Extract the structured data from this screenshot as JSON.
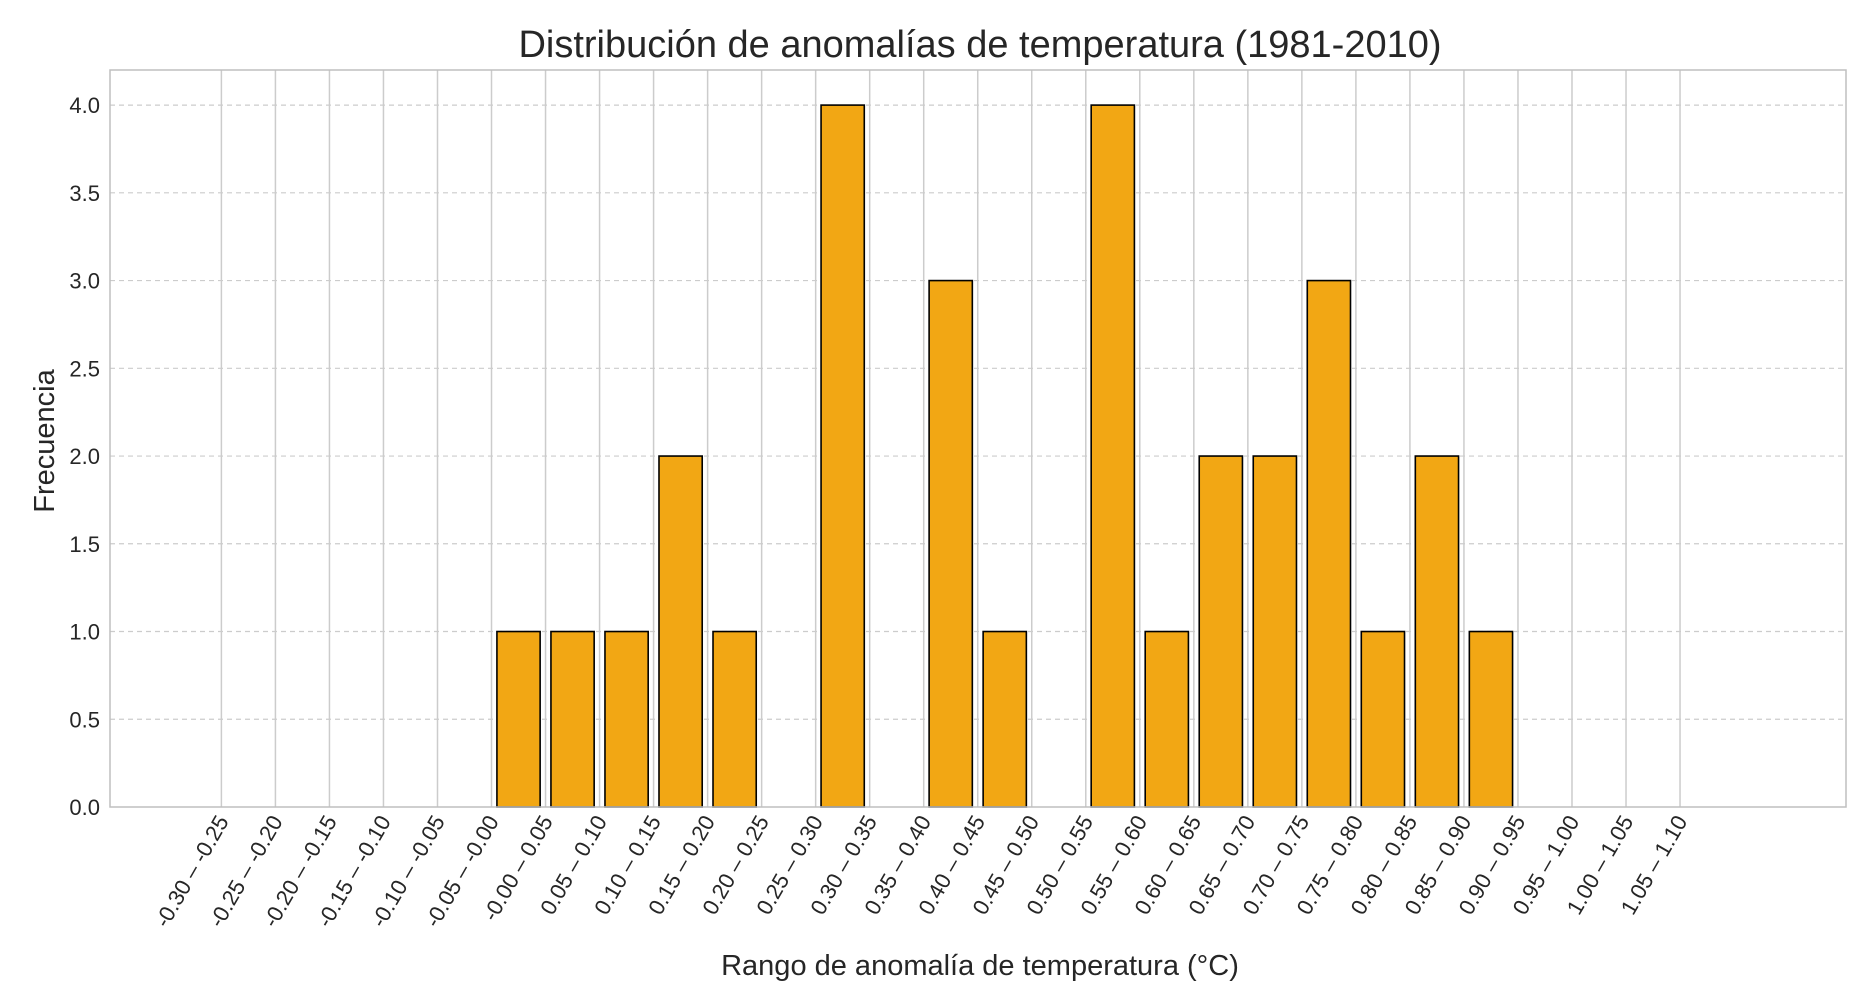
{
  "chart_data": {
    "type": "bar",
    "title": "Distribución de anomalías de temperatura (1981-2010)",
    "xlabel": "Rango de anomalía de temperatura (°C)",
    "ylabel": "Frecuencia",
    "categories": [
      "-0.30 – -0.25",
      "-0.25 – -0.20",
      "-0.20 – -0.15",
      "-0.15 – -0.10",
      "-0.10 – -0.05",
      "-0.05 – -0.00",
      "-0.00 – 0.05",
      "0.05 – 0.10",
      "0.10 – 0.15",
      "0.15 – 0.20",
      "0.20 – 0.25",
      "0.25 – 0.30",
      "0.30 – 0.35",
      "0.35 – 0.40",
      "0.40 – 0.45",
      "0.45 – 0.50",
      "0.50 – 0.55",
      "0.55 – 0.60",
      "0.60 – 0.65",
      "0.65 – 0.70",
      "0.70 – 0.75",
      "0.75 – 0.80",
      "0.80 – 0.85",
      "0.85 – 0.90",
      "0.90 – 0.95",
      "0.95 – 1.00",
      "1.00 – 1.05",
      "1.05 – 1.10"
    ],
    "bars": [
      {
        "bin_start": -0.05,
        "value": 1
      },
      {
        "bin_start": 0.0,
        "value": 1
      },
      {
        "bin_start": 0.05,
        "value": 1
      },
      {
        "bin_start": 0.1,
        "value": 2
      },
      {
        "bin_start": 0.15,
        "value": 1
      },
      {
        "bin_start": 0.25,
        "value": 4
      },
      {
        "bin_start": 0.35,
        "value": 3
      },
      {
        "bin_start": 0.4,
        "value": 1
      },
      {
        "bin_start": 0.5,
        "value": 4
      },
      {
        "bin_start": 0.55,
        "value": 1
      },
      {
        "bin_start": 0.6,
        "value": 2
      },
      {
        "bin_start": 0.65,
        "value": 2
      },
      {
        "bin_start": 0.7,
        "value": 3
      },
      {
        "bin_start": 0.75,
        "value": 1
      },
      {
        "bin_start": 0.8,
        "value": 2
      },
      {
        "bin_start": 0.85,
        "value": 1
      }
    ],
    "xlim": [
      -0.3,
      1.1
    ],
    "ylim": [
      0,
      4.2
    ],
    "yticks": [
      "0.0",
      "0.5",
      "1.0",
      "1.5",
      "2.0",
      "2.5",
      "3.0",
      "3.5",
      "4.0"
    ],
    "grid": true,
    "colors": {
      "bar_fill": "#F2A714",
      "bar_edge": "#000000",
      "grid": "#cccccc",
      "axes_edge": "#bfbfbf",
      "text": "#262626"
    }
  }
}
